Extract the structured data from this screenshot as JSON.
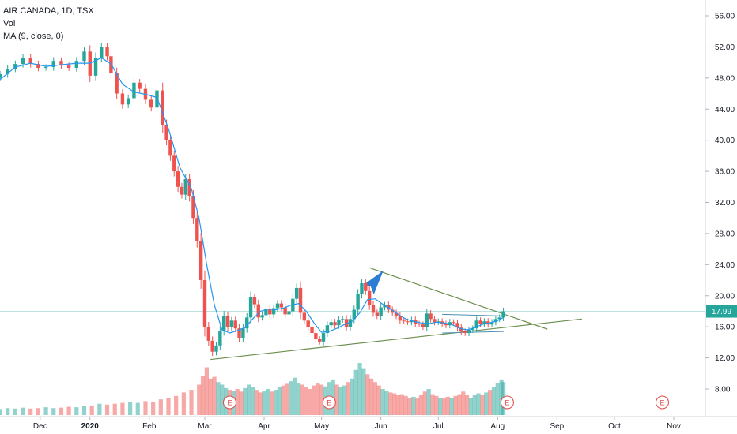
{
  "chart_data": {
    "type": "candlestick",
    "legend": {
      "symbol_line": "AIR CANADA, 1D, TSX",
      "volume_label": "Vol",
      "ma_label": "MA (9, close, 0)"
    },
    "y_ticks": [
      "56.00",
      "52.00",
      "48.00",
      "44.00",
      "40.00",
      "36.00",
      "32.00",
      "28.00",
      "24.00",
      "20.00",
      "16.00",
      "12.00",
      "8.00"
    ],
    "y_tick_values": [
      56,
      52,
      48,
      44,
      40,
      36,
      32,
      28,
      24,
      20,
      16,
      12,
      8
    ],
    "ylim": [
      6,
      57.5
    ],
    "x_ticks": [
      {
        "label": "Dec",
        "day": -27
      },
      {
        "label": "2020",
        "day": -1,
        "bold": true
      },
      {
        "label": "Feb",
        "day": 30
      },
      {
        "label": "Mar",
        "day": 59
      },
      {
        "label": "Apr",
        "day": 90
      },
      {
        "label": "May",
        "day": 120
      },
      {
        "label": "Jun",
        "day": 151
      },
      {
        "label": "Jul",
        "day": 181
      },
      {
        "label": "Aug",
        "day": 212
      },
      {
        "label": "Sep",
        "day": 243
      },
      {
        "label": "Oct",
        "day": 273
      },
      {
        "label": "Nov",
        "day": 304
      }
    ],
    "last_price": "17.99",
    "earnings_marker": "E",
    "earnings_days": [
      72,
      124,
      217,
      298
    ],
    "price_series": [
      [
        -48,
        48.5
      ],
      [
        -44,
        49.2
      ],
      [
        -40,
        49.8
      ],
      [
        -36,
        50.6
      ],
      [
        -32,
        49.8
      ],
      [
        -28,
        49.3
      ],
      [
        -24,
        49.4
      ],
      [
        -20,
        50.2
      ],
      [
        -16,
        49.6
      ],
      [
        -12,
        49.3
      ],
      [
        -8,
        50.2
      ],
      [
        -4,
        51.4
      ],
      [
        -1,
        48.3
      ],
      [
        2,
        50.6
      ],
      [
        5,
        52.0
      ],
      [
        8,
        50.8
      ],
      [
        10,
        48.6
      ],
      [
        13,
        46.0
      ],
      [
        16,
        44.6
      ],
      [
        19,
        45.4
      ],
      [
        22,
        47.4
      ],
      [
        25,
        46.6
      ],
      [
        28,
        45.2
      ],
      [
        31,
        44.2
      ],
      [
        34,
        46.4
      ],
      [
        37,
        42.0
      ],
      [
        39,
        40.0
      ],
      [
        41,
        38.0
      ],
      [
        43,
        36.0
      ],
      [
        45,
        34.0
      ],
      [
        47,
        33.0
      ],
      [
        49,
        35.0
      ],
      [
        51,
        32.8
      ],
      [
        53,
        30.0
      ],
      [
        55,
        27.0
      ],
      [
        57,
        22.0
      ],
      [
        59,
        16.0
      ],
      [
        61,
        14.2
      ],
      [
        63,
        12.8
      ],
      [
        65,
        13.6
      ],
      [
        67,
        15.5
      ],
      [
        69,
        17.4
      ],
      [
        71,
        16.0
      ],
      [
        73,
        16.8
      ],
      [
        75,
        15.8
      ],
      [
        77,
        14.6
      ],
      [
        79,
        15.8
      ],
      [
        81,
        17.2
      ],
      [
        83,
        19.8
      ],
      [
        85,
        18.9
      ],
      [
        87,
        17.2
      ],
      [
        89,
        17.5
      ],
      [
        91,
        18.3
      ],
      [
        93,
        17.6
      ],
      [
        95,
        18.4
      ],
      [
        97,
        19.0
      ],
      [
        99,
        18.5
      ],
      [
        101,
        17.6
      ],
      [
        103,
        18.0
      ],
      [
        105,
        19.6
      ],
      [
        107,
        21.0
      ],
      [
        109,
        17.8
      ],
      [
        111,
        16.8
      ],
      [
        113,
        16.0
      ],
      [
        115,
        15.2
      ],
      [
        117,
        14.4
      ],
      [
        119,
        14.1
      ],
      [
        121,
        15.2
      ],
      [
        123,
        16.2
      ],
      [
        125,
        16.6
      ],
      [
        127,
        16.2
      ],
      [
        129,
        16.9
      ],
      [
        131,
        17.0
      ],
      [
        133,
        16.0
      ],
      [
        135,
        17.0
      ],
      [
        137,
        18.2
      ],
      [
        139,
        20.2
      ],
      [
        141,
        21.6
      ],
      [
        143,
        20.6
      ],
      [
        145,
        18.8
      ],
      [
        147,
        17.8
      ],
      [
        149,
        17.4
      ],
      [
        151,
        18.5
      ],
      [
        153,
        18.8
      ],
      [
        155,
        18.2
      ],
      [
        157,
        17.8
      ],
      [
        159,
        17.4
      ],
      [
        161,
        16.8
      ],
      [
        163,
        16.7
      ],
      [
        165,
        16.6
      ],
      [
        167,
        16.9
      ],
      [
        169,
        16.4
      ],
      [
        171,
        16.3
      ],
      [
        173,
        16.0
      ],
      [
        175,
        17.7
      ],
      [
        177,
        17.0
      ],
      [
        179,
        16.6
      ],
      [
        181,
        16.7
      ],
      [
        183,
        16.4
      ],
      [
        185,
        16.2
      ],
      [
        187,
        16.6
      ],
      [
        189,
        16.5
      ],
      [
        191,
        15.9
      ],
      [
        193,
        15.4
      ],
      [
        195,
        15.2
      ],
      [
        197,
        15.6
      ],
      [
        199,
        15.8
      ],
      [
        201,
        16.8
      ],
      [
        203,
        16.4
      ],
      [
        205,
        16.7
      ],
      [
        207,
        16.3
      ],
      [
        209,
        16.6
      ],
      [
        211,
        17.0
      ],
      [
        213,
        17.2
      ],
      [
        215,
        17.99
      ]
    ],
    "ma_series": [
      [
        -48,
        47.8
      ],
      [
        -40,
        49.4
      ],
      [
        -32,
        49.9
      ],
      [
        -24,
        49.5
      ],
      [
        -16,
        49.7
      ],
      [
        -8,
        49.9
      ],
      [
        -1,
        49.9
      ],
      [
        5,
        50.6
      ],
      [
        10,
        49.8
      ],
      [
        16,
        47.2
      ],
      [
        22,
        46.2
      ],
      [
        28,
        45.9
      ],
      [
        34,
        45.5
      ],
      [
        40,
        41.5
      ],
      [
        46,
        36.5
      ],
      [
        52,
        33.8
      ],
      [
        56,
        30.0
      ],
      [
        60,
        24.0
      ],
      [
        64,
        18.8
      ],
      [
        68,
        15.6
      ],
      [
        72,
        15.2
      ],
      [
        76,
        15.5
      ],
      [
        80,
        15.9
      ],
      [
        84,
        17.0
      ],
      [
        88,
        18.0
      ],
      [
        92,
        18.3
      ],
      [
        96,
        18.2
      ],
      [
        100,
        18.4
      ],
      [
        104,
        18.8
      ],
      [
        108,
        19.0
      ],
      [
        112,
        18.0
      ],
      [
        116,
        16.5
      ],
      [
        120,
        15.3
      ],
      [
        124,
        15.4
      ],
      [
        128,
        15.8
      ],
      [
        132,
        16.3
      ],
      [
        136,
        16.7
      ],
      [
        140,
        17.8
      ],
      [
        144,
        19.5
      ],
      [
        148,
        19.6
      ],
      [
        152,
        18.9
      ],
      [
        156,
        18.3
      ],
      [
        160,
        17.6
      ],
      [
        164,
        17.0
      ],
      [
        168,
        16.7
      ],
      [
        172,
        16.5
      ],
      [
        176,
        16.4
      ],
      [
        180,
        16.6
      ],
      [
        184,
        16.5
      ],
      [
        188,
        16.3
      ],
      [
        192,
        15.8
      ],
      [
        196,
        15.6
      ],
      [
        200,
        15.9
      ],
      [
        204,
        16.3
      ],
      [
        208,
        16.5
      ],
      [
        212,
        16.8
      ],
      [
        215,
        17.2
      ]
    ],
    "volume": [
      [
        -48,
        1.4
      ],
      [
        -44,
        1.6
      ],
      [
        -40,
        1.5
      ],
      [
        -36,
        1.7
      ],
      [
        -32,
        1.5
      ],
      [
        -28,
        1.6
      ],
      [
        -24,
        1.8
      ],
      [
        -20,
        1.6
      ],
      [
        -16,
        1.7
      ],
      [
        -12,
        1.9
      ],
      [
        -8,
        1.8
      ],
      [
        -4,
        2.0
      ],
      [
        0,
        2.2
      ],
      [
        4,
        2.6
      ],
      [
        8,
        2.4
      ],
      [
        12,
        2.6
      ],
      [
        16,
        2.8
      ],
      [
        20,
        3.0
      ],
      [
        24,
        2.8
      ],
      [
        28,
        3.2
      ],
      [
        32,
        3.0
      ],
      [
        36,
        3.6
      ],
      [
        40,
        4.0
      ],
      [
        44,
        4.4
      ],
      [
        48,
        5.2
      ],
      [
        52,
        5.8
      ],
      [
        56,
        7.0
      ],
      [
        58,
        9.0
      ],
      [
        60,
        11.0
      ],
      [
        62,
        8.4
      ],
      [
        64,
        8.8
      ],
      [
        66,
        7.6
      ],
      [
        68,
        7.0
      ],
      [
        70,
        6.2
      ],
      [
        72,
        5.8
      ],
      [
        74,
        5.6
      ],
      [
        76,
        6.0
      ],
      [
        78,
        5.4
      ],
      [
        80,
        6.2
      ],
      [
        82,
        7.0
      ],
      [
        84,
        6.4
      ],
      [
        86,
        5.8
      ],
      [
        88,
        5.2
      ],
      [
        90,
        5.6
      ],
      [
        92,
        6.0
      ],
      [
        94,
        5.4
      ],
      [
        96,
        5.8
      ],
      [
        98,
        6.4
      ],
      [
        100,
        6.8
      ],
      [
        102,
        7.2
      ],
      [
        104,
        7.8
      ],
      [
        106,
        8.6
      ],
      [
        108,
        7.4
      ],
      [
        110,
        7.0
      ],
      [
        112,
        6.4
      ],
      [
        114,
        6.0
      ],
      [
        116,
        6.8
      ],
      [
        118,
        7.4
      ],
      [
        120,
        7.0
      ],
      [
        122,
        6.6
      ],
      [
        124,
        7.6
      ],
      [
        126,
        8.2
      ],
      [
        128,
        7.0
      ],
      [
        130,
        6.4
      ],
      [
        132,
        6.8
      ],
      [
        134,
        7.6
      ],
      [
        136,
        8.4
      ],
      [
        138,
        10.4
      ],
      [
        140,
        12.0
      ],
      [
        142,
        10.8
      ],
      [
        144,
        9.4
      ],
      [
        146,
        8.4
      ],
      [
        148,
        7.6
      ],
      [
        150,
        6.8
      ],
      [
        152,
        6.0
      ],
      [
        154,
        5.6
      ],
      [
        156,
        5.2
      ],
      [
        158,
        5.0
      ],
      [
        160,
        4.6
      ],
      [
        162,
        4.8
      ],
      [
        164,
        4.4
      ],
      [
        166,
        4.0
      ],
      [
        168,
        4.2
      ],
      [
        170,
        3.8
      ],
      [
        172,
        4.6
      ],
      [
        174,
        5.4
      ],
      [
        176,
        6.0
      ],
      [
        178,
        4.8
      ],
      [
        180,
        4.4
      ],
      [
        182,
        4.0
      ],
      [
        184,
        3.8
      ],
      [
        186,
        4.2
      ],
      [
        188,
        4.0
      ],
      [
        190,
        4.4
      ],
      [
        192,
        4.8
      ],
      [
        194,
        5.4
      ],
      [
        196,
        4.6
      ],
      [
        198,
        4.0
      ],
      [
        200,
        4.6
      ],
      [
        202,
        5.0
      ],
      [
        204,
        4.6
      ],
      [
        206,
        5.2
      ],
      [
        208,
        5.8
      ],
      [
        210,
        6.4
      ],
      [
        212,
        7.4
      ],
      [
        214,
        8.2
      ],
      [
        215,
        7.6
      ]
    ],
    "volume_max": 12,
    "triangle_top": [
      [
        145,
        23.6
      ],
      [
        238,
        15.7
      ]
    ],
    "triangle_bottom": [
      [
        62,
        11.8
      ],
      [
        256,
        17.0
      ]
    ],
    "box_top": [
      [
        183,
        17.6
      ],
      [
        215,
        17.4
      ]
    ],
    "box_bottom": [
      [
        183,
        15.2
      ],
      [
        215,
        15.4
      ]
    ],
    "arrow_at": [
      144,
      21.6
    ]
  }
}
